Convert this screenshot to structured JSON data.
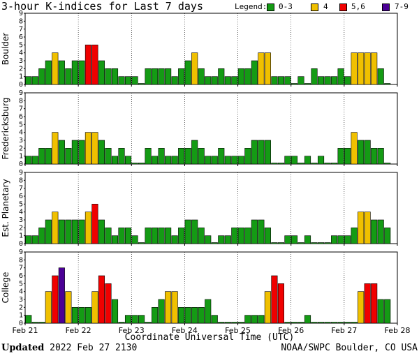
{
  "title": "3-hour K-indices for Last 7 days",
  "legend": {
    "label": "Legend:",
    "entries": [
      {
        "text": "0-3",
        "color": "#149b14"
      },
      {
        "text": "4",
        "color": "#f0c000"
      },
      {
        "text": "5,6",
        "color": "#f00000"
      },
      {
        "text": "7-9",
        "color": "#4b0096"
      }
    ]
  },
  "footer": {
    "updated_label": "Updated",
    "updated_value": "2022 Feb 27 2130",
    "source": "NOAA/SWPC Boulder, CO USA"
  },
  "chart_data": {
    "type": "bar",
    "title": "3-hour K-indices for Last 7 days",
    "xlabel": "Coordinate Universal Time (UTC)",
    "x_ticks": [
      "Feb 21",
      "Feb 22",
      "Feb 23",
      "Feb 24",
      "Feb 25",
      "Feb 26",
      "Feb 27",
      "Feb 28"
    ],
    "ylim": [
      0,
      9
    ],
    "y_ticks": [
      0,
      1,
      2,
      3,
      4,
      5,
      6,
      7,
      8,
      9
    ],
    "bins_per_day": 8,
    "color_scale": {
      "0-3": "#149b14",
      "4": "#f0c000",
      "5,6": "#f00000",
      "7-9": "#4b0096"
    },
    "panels": [
      {
        "ylabel": "Boulder",
        "values": [
          1,
          1,
          2,
          3,
          4,
          3,
          2,
          3,
          3,
          5,
          5,
          3,
          2,
          2,
          1,
          1,
          1,
          0,
          2,
          2,
          2,
          2,
          1,
          2,
          3,
          4,
          2,
          1,
          1,
          2,
          1,
          1,
          2,
          2,
          3,
          4,
          4,
          1,
          1,
          1,
          0,
          1,
          0,
          2,
          1,
          1,
          1,
          2,
          1,
          4,
          4,
          4,
          4,
          2,
          0
        ]
      },
      {
        "ylabel": "Fredericksburg",
        "values": [
          1,
          1,
          2,
          2,
          4,
          3,
          2,
          3,
          3,
          4,
          4,
          3,
          2,
          1,
          2,
          1,
          0,
          0,
          2,
          1,
          2,
          1,
          1,
          2,
          2,
          3,
          2,
          1,
          1,
          2,
          1,
          1,
          1,
          2,
          3,
          3,
          3,
          0,
          0,
          1,
          1,
          0,
          1,
          0,
          1,
          0,
          0,
          2,
          2,
          4,
          3,
          3,
          2,
          2,
          0
        ]
      },
      {
        "ylabel": "Est. Planetary",
        "values": [
          1,
          1,
          2,
          3,
          4,
          3,
          3,
          3,
          3,
          4,
          5,
          3,
          2,
          1,
          2,
          2,
          1,
          0,
          2,
          2,
          2,
          2,
          1,
          2,
          3,
          3,
          2,
          1,
          0,
          1,
          1,
          2,
          2,
          2,
          3,
          3,
          2,
          0,
          0,
          1,
          1,
          0,
          1,
          0,
          0,
          0,
          1,
          1,
          1,
          2,
          4,
          4,
          3,
          3,
          2
        ]
      },
      {
        "ylabel": "College",
        "values": [
          1,
          0,
          0,
          4,
          6,
          7,
          4,
          2,
          2,
          2,
          4,
          6,
          5,
          3,
          0,
          1,
          1,
          1,
          0,
          2,
          3,
          4,
          4,
          2,
          2,
          2,
          2,
          3,
          1,
          0,
          0,
          0,
          0,
          1,
          1,
          1,
          4,
          6,
          5,
          0,
          0,
          0,
          1,
          0,
          0,
          0,
          0,
          0,
          0,
          0,
          4,
          5,
          5,
          3,
          3
        ]
      }
    ]
  }
}
